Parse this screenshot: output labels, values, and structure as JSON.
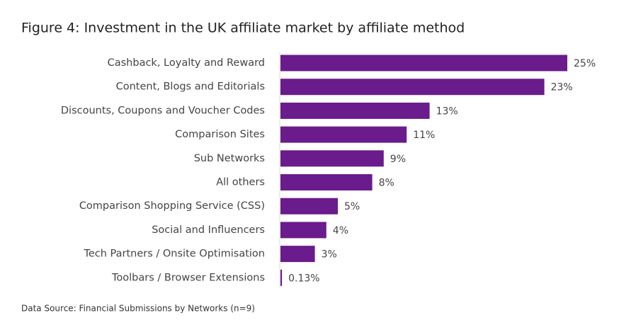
{
  "chart_data": {
    "type": "bar",
    "orientation": "horizontal",
    "title": "Figure 4: Investment in the UK affiliate market by affiliate method",
    "categories": [
      "Cashback, Loyalty and Reward",
      "Content, Blogs and Editorials",
      "Discounts, Coupons and Voucher Codes",
      "Comparison Sites",
      "Sub Networks",
      "All others",
      "Comparison Shopping Service (CSS)",
      "Social and Influencers",
      "Tech Partners / Onsite Optimisation",
      "Toolbars / Browser Extensions"
    ],
    "values": [
      25,
      23,
      13,
      11,
      9,
      8,
      5,
      4,
      3,
      0.13
    ],
    "value_labels": [
      "25%",
      "23%",
      "13%",
      "11%",
      "9%",
      "8%",
      "5%",
      "4%",
      "3%",
      "0.13%"
    ],
    "color": "#6a1b8c",
    "source": "Data Source: Financial Submissions by Networks (n=9)"
  }
}
